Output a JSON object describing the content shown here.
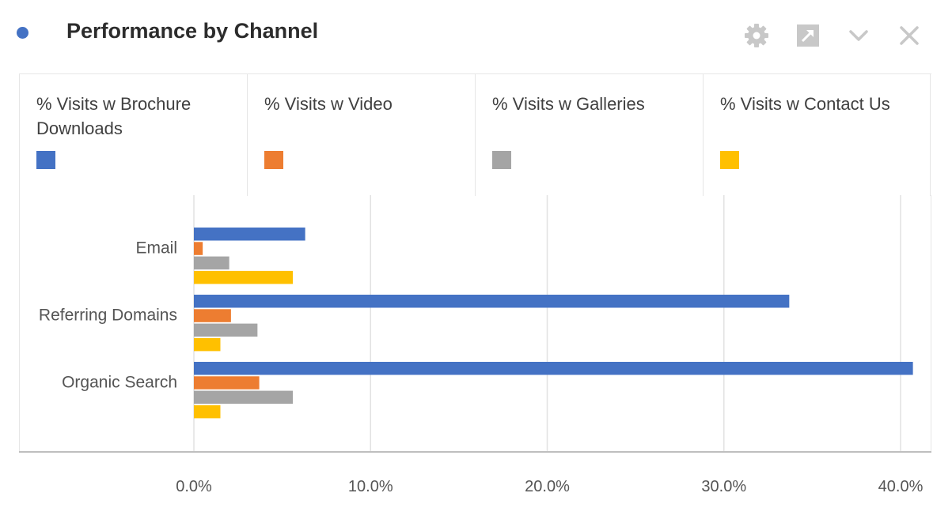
{
  "header": {
    "title": "Performance by Channel",
    "dot_color": "#4472c4",
    "icons": [
      "gear-icon",
      "expand-icon",
      "chevron-down-icon",
      "close-icon"
    ]
  },
  "legend": [
    {
      "label": "% Visits w Brochure Downloads",
      "color": "#4472c4"
    },
    {
      "label": "% Visits w Video",
      "color": "#ed7d31"
    },
    {
      "label": "% Visits w Galleries",
      "color": "#a5a5a5"
    },
    {
      "label": "% Visits w Contact Us",
      "color": "#ffc000"
    }
  ],
  "chart_data": {
    "type": "bar",
    "orientation": "horizontal",
    "categories": [
      "Email",
      "Referring Domains",
      "Organic Search"
    ],
    "series": [
      {
        "name": "% Visits w Brochure Downloads",
        "color": "#4472c4",
        "values": [
          6.3,
          33.7,
          40.7
        ]
      },
      {
        "name": "% Visits w Video",
        "color": "#ed7d31",
        "values": [
          0.5,
          2.1,
          3.7
        ]
      },
      {
        "name": "% Visits w Galleries",
        "color": "#a5a5a5",
        "values": [
          2.0,
          3.6,
          5.6
        ]
      },
      {
        "name": "% Visits w Contact Us",
        "color": "#ffc000",
        "values": [
          5.6,
          1.5,
          1.5
        ]
      }
    ],
    "x_ticks": [
      "0.0%",
      "10.0%",
      "20.0%",
      "30.0%",
      "40.0%"
    ],
    "xlim": [
      0,
      40
    ],
    "grid": true,
    "legend_position": "top"
  }
}
